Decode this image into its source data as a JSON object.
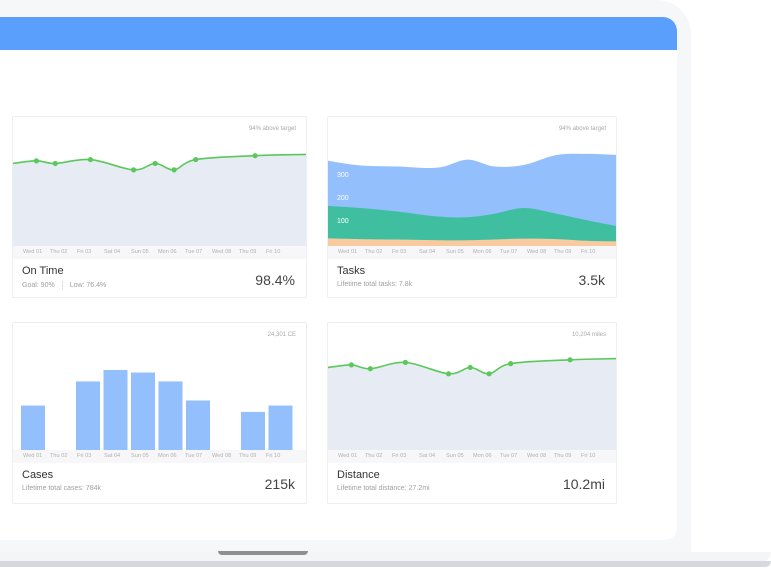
{
  "axis_labels": [
    "Wed 01",
    "Thu 02",
    "Fri 03",
    "Sat 04",
    "Sun 05",
    "Mon 06",
    "Tue 07",
    "Wed 08",
    "Thu 09",
    "Fri 10"
  ],
  "colors": {
    "header": "#5b9ffc",
    "line": "#5ac85a",
    "area_fill": "#e6ebf4",
    "bar": "#93bffc",
    "stack_blue": "#93bffc",
    "stack_green": "#3fbfa0",
    "stack_orange": "#f9c9a0"
  },
  "cards": {
    "on_time": {
      "note": "94% above target",
      "title": "On Time",
      "goal": "Goal: 90%",
      "low": "Low: 76.4%",
      "value": "98.4%"
    },
    "tasks": {
      "note": "94% above target",
      "title": "Tasks",
      "subtitle": "Lifetime total tasks: 7.8k",
      "value": "3.5k",
      "y_ticks": [
        "300",
        "200",
        "100"
      ]
    },
    "cases": {
      "note": "24,301 CE",
      "title": "Cases",
      "subtitle": "Lifetime total cases: 784k",
      "value": "215k"
    },
    "distance": {
      "note": "10,204 miles",
      "title": "Distance",
      "subtitle": "Lifetime total distance: 27.2mi",
      "value": "10.2mi"
    }
  },
  "chart_data": [
    {
      "type": "line",
      "name": "On Time",
      "ylim": [
        0,
        100
      ],
      "x": [
        0.3,
        1.2,
        1.9,
        3.2,
        4.8,
        5.6,
        6.3,
        7.1,
        9.3,
        10.3
      ],
      "y": [
        64,
        66,
        64,
        67,
        59,
        64,
        59,
        67,
        70,
        71
      ],
      "markers": [
        1,
        2,
        3,
        4,
        5,
        6,
        7,
        8
      ]
    },
    {
      "type": "area",
      "name": "Tasks",
      "stacked": true,
      "ylim": [
        0,
        560
      ],
      "x": [
        0.3,
        1.5,
        2.9,
        4.4,
        5.5,
        6.5,
        7.6,
        8.8,
        10,
        11
      ],
      "series": [
        {
          "name": "orange",
          "values": [
            33,
            30,
            28,
            25,
            25,
            28,
            32,
            30,
            22,
            20
          ]
        },
        {
          "name": "green",
          "values": [
            141,
            135,
            122,
            103,
            100,
            112,
            133,
            110,
            88,
            65
          ]
        },
        {
          "name": "blue",
          "values": [
            196,
            185,
            195,
            212,
            250,
            205,
            187,
            255,
            290,
            310
          ]
        }
      ]
    },
    {
      "type": "bar",
      "name": "Cases",
      "ylim": [
        0,
        100
      ],
      "categories": [
        "Wed 01",
        "Thu 02",
        "Fri 03",
        "Sat 04",
        "Sun 05",
        "Mon 06",
        "Tue 07",
        "Wed 08",
        "Thu 09",
        "Fri 10"
      ],
      "values": [
        35,
        0,
        54,
        63,
        61,
        54,
        39,
        0,
        30,
        35
      ]
    },
    {
      "type": "line",
      "name": "Distance",
      "ylim": [
        0,
        100
      ],
      "x": [
        -0.3,
        1.2,
        1.9,
        3.2,
        4.8,
        5.6,
        6.3,
        7.1,
        9.3,
        11
      ],
      "y": [
        65,
        67,
        64,
        69,
        60,
        65,
        60,
        68,
        71,
        72
      ],
      "markers": [
        1,
        2,
        3,
        4,
        5,
        6,
        7,
        8
      ]
    }
  ]
}
